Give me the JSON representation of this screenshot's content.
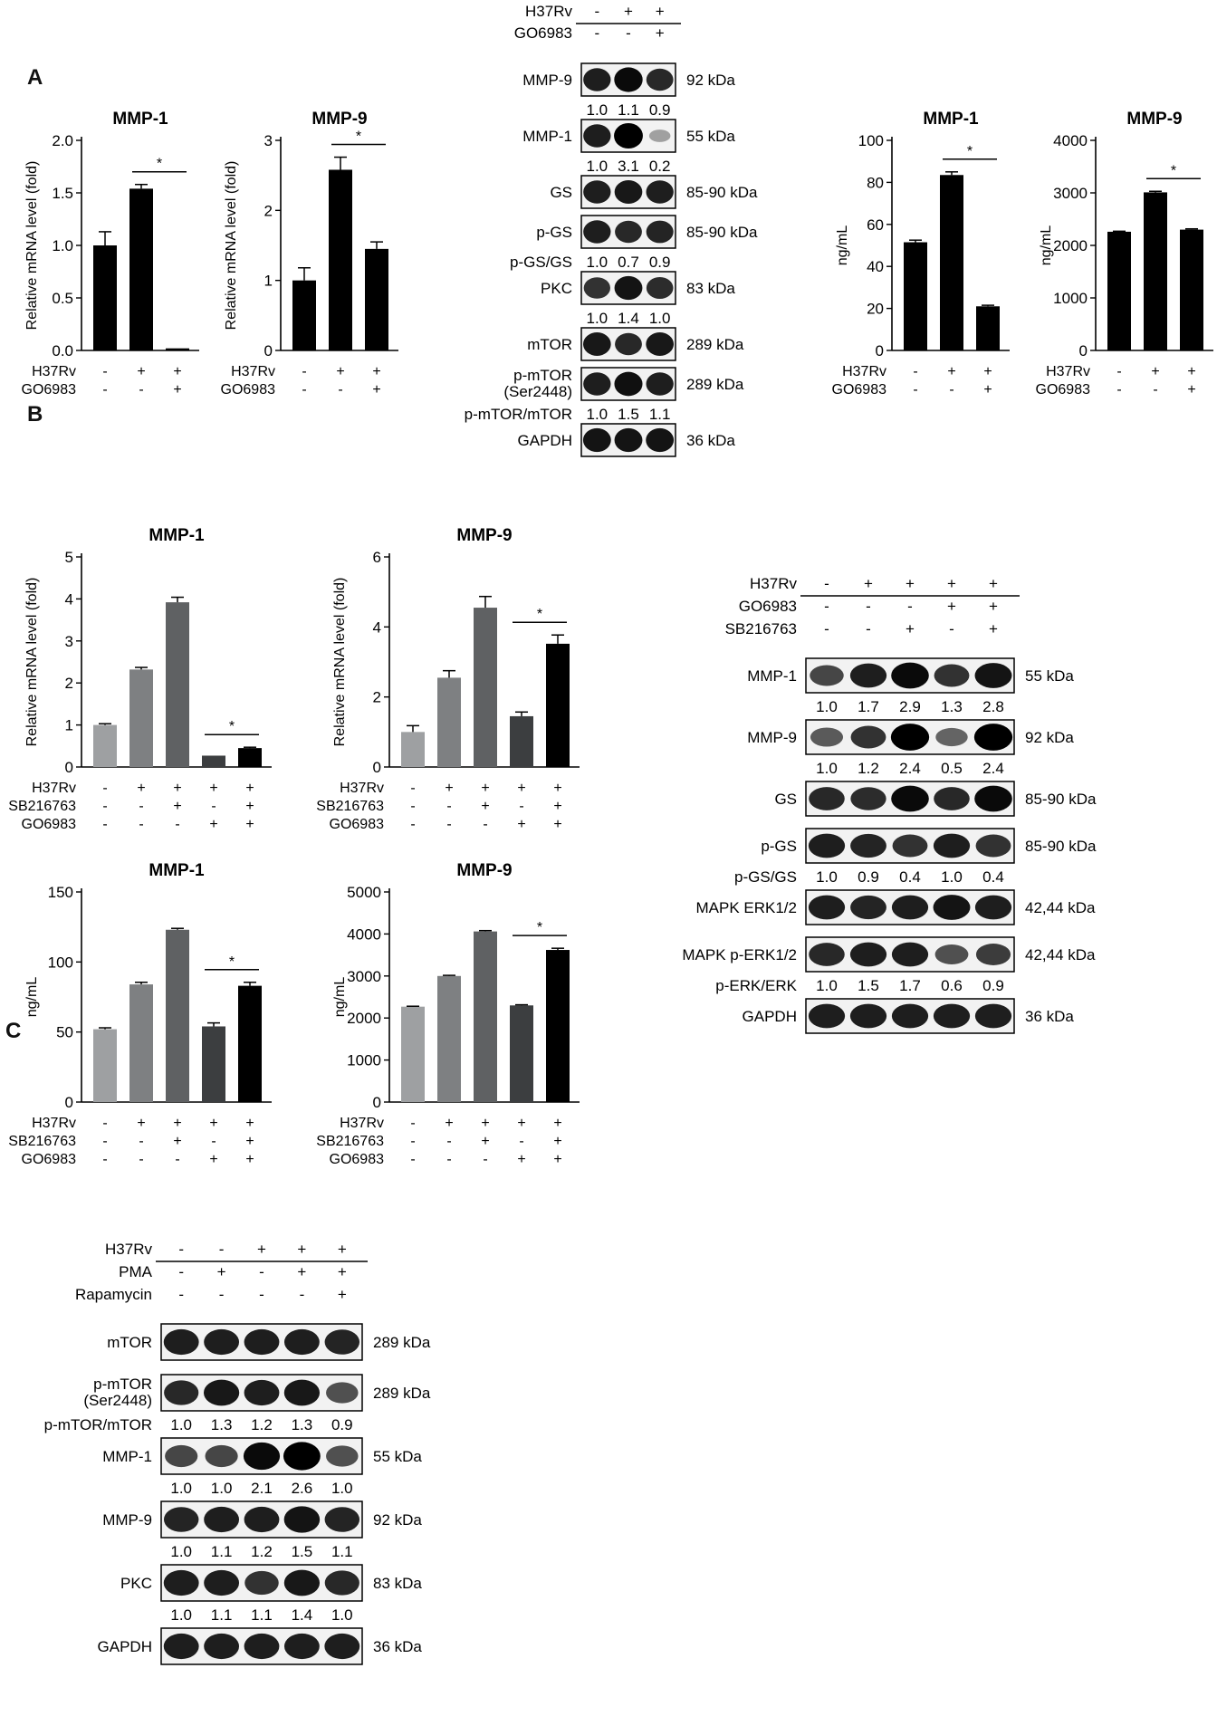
{
  "panels": {
    "a": "A",
    "b": "B",
    "c": "C"
  },
  "chart_data": [
    {
      "id": "a-mmp1-mrna",
      "type": "bar",
      "title": "MMP-1",
      "ylabel": "Relative mRNA level (fold)",
      "ylim": [
        0,
        2.0
      ],
      "yticks": [
        0.0,
        0.5,
        1.0,
        1.5,
        2.0
      ],
      "tick_decimals": 1,
      "values": [
        1.0,
        1.54,
        0.02
      ],
      "errors": [
        0.13,
        0.04,
        0.0
      ],
      "colors": [
        "#000000",
        "#000000",
        "#000000"
      ],
      "conditions": [
        {
          "name": "H37Rv",
          "signs": [
            "-",
            "+",
            "+"
          ]
        },
        {
          "name": "GO6983",
          "signs": [
            "-",
            "-",
            "+"
          ]
        }
      ],
      "sig": [
        {
          "from": 1,
          "to": 2,
          "label": "*"
        }
      ]
    },
    {
      "id": "a-mmp9-mrna",
      "type": "bar",
      "title": "MMP-9",
      "ylabel": "Relative mRNA level (fold)",
      "ylim": [
        0,
        3
      ],
      "yticks": [
        0,
        1,
        2,
        3
      ],
      "tick_decimals": 0,
      "values": [
        1.0,
        2.58,
        1.45
      ],
      "errors": [
        0.18,
        0.18,
        0.1
      ],
      "colors": [
        "#000000",
        "#000000",
        "#000000"
      ],
      "conditions": [
        {
          "name": "H37Rv",
          "signs": [
            "-",
            "+",
            "+"
          ]
        },
        {
          "name": "GO6983",
          "signs": [
            "-",
            "-",
            "+"
          ]
        }
      ],
      "sig": [
        {
          "from": 1,
          "to": 2,
          "label": "*"
        }
      ]
    },
    {
      "id": "a-mmp1-elisa",
      "type": "bar",
      "title": "MMP-1",
      "ylabel": "ng/mL",
      "ylim": [
        0,
        100
      ],
      "yticks": [
        0,
        20,
        40,
        60,
        80,
        100
      ],
      "tick_decimals": 0,
      "values": [
        51.5,
        83.5,
        21.0
      ],
      "errors": [
        1.0,
        1.5,
        0.5
      ],
      "colors": [
        "#000000",
        "#000000",
        "#000000"
      ],
      "conditions": [
        {
          "name": "H37Rv",
          "signs": [
            "-",
            "+",
            "+"
          ]
        },
        {
          "name": "GO6983",
          "signs": [
            "-",
            "-",
            "+"
          ]
        }
      ],
      "sig": [
        {
          "from": 1,
          "to": 2,
          "label": "*"
        }
      ]
    },
    {
      "id": "a-mmp9-elisa",
      "type": "bar",
      "title": "MMP-9",
      "ylabel": "ng/mL",
      "ylim": [
        0,
        4000
      ],
      "yticks": [
        0,
        1000,
        2000,
        3000,
        4000
      ],
      "tick_decimals": 0,
      "values": [
        2260,
        3010,
        2300
      ],
      "errors": [
        10,
        20,
        15
      ],
      "colors": [
        "#000000",
        "#000000",
        "#000000"
      ],
      "conditions": [
        {
          "name": "H37Rv",
          "signs": [
            "-",
            "+",
            "+"
          ]
        },
        {
          "name": "GO6983",
          "signs": [
            "-",
            "-",
            "+"
          ]
        }
      ],
      "sig": [
        {
          "from": 1,
          "to": 2,
          "label": "*"
        }
      ]
    },
    {
      "id": "b-mmp1-mrna",
      "type": "bar",
      "title": "MMP-1",
      "ylabel": "Relative mRNA level (fold)",
      "ylim": [
        0,
        5
      ],
      "yticks": [
        0,
        1,
        2,
        3,
        4,
        5
      ],
      "tick_decimals": 0,
      "values": [
        1.0,
        2.32,
        3.92,
        0.27,
        0.45
      ],
      "errors": [
        0.03,
        0.05,
        0.12,
        0.0,
        0.02
      ],
      "colors": [
        "#9ea0a2",
        "#7e8082",
        "#5f6163",
        "#3c3e40",
        "#000000"
      ],
      "conditions": [
        {
          "name": "H37Rv",
          "signs": [
            "-",
            "+",
            "+",
            "+",
            "+"
          ]
        },
        {
          "name": "SB216763",
          "signs": [
            "-",
            "-",
            "+",
            "-",
            "+"
          ]
        },
        {
          "name": "GO6983",
          "signs": [
            "-",
            "-",
            "-",
            "+",
            "+"
          ]
        }
      ],
      "sig": [
        {
          "from": 3,
          "to": 4,
          "label": "*"
        }
      ]
    },
    {
      "id": "b-mmp9-mrna",
      "type": "bar",
      "title": "MMP-9",
      "ylabel": "Relative mRNA level (fold)",
      "ylim": [
        0,
        6
      ],
      "yticks": [
        0,
        2,
        4,
        6
      ],
      "tick_decimals": 0,
      "values": [
        1.0,
        2.55,
        4.55,
        1.45,
        3.52
      ],
      "errors": [
        0.18,
        0.2,
        0.32,
        0.12,
        0.25
      ],
      "colors": [
        "#9ea0a2",
        "#7e8082",
        "#5f6163",
        "#3c3e40",
        "#000000"
      ],
      "conditions": [
        {
          "name": "H37Rv",
          "signs": [
            "-",
            "+",
            "+",
            "+",
            "+"
          ]
        },
        {
          "name": "SB216763",
          "signs": [
            "-",
            "-",
            "+",
            "-",
            "+"
          ]
        },
        {
          "name": "GO6983",
          "signs": [
            "-",
            "-",
            "-",
            "+",
            "+"
          ]
        }
      ],
      "sig": [
        {
          "from": 3,
          "to": 4,
          "label": "*"
        }
      ]
    },
    {
      "id": "b-mmp1-elisa",
      "type": "bar",
      "title": "MMP-1",
      "ylabel": "ng/mL",
      "ylim": [
        0,
        150
      ],
      "yticks": [
        0,
        50,
        100,
        150
      ],
      "tick_decimals": 0,
      "values": [
        52,
        84,
        123,
        54,
        83
      ],
      "errors": [
        1.0,
        1.5,
        1.0,
        2.5,
        2.5
      ],
      "colors": [
        "#9ea0a2",
        "#7e8082",
        "#5f6163",
        "#3c3e40",
        "#000000"
      ],
      "conditions": [
        {
          "name": "H37Rv",
          "signs": [
            "-",
            "+",
            "+",
            "+",
            "+"
          ]
        },
        {
          "name": "SB216763",
          "signs": [
            "-",
            "-",
            "+",
            "-",
            "+"
          ]
        },
        {
          "name": "GO6983",
          "signs": [
            "-",
            "-",
            "-",
            "+",
            "+"
          ]
        }
      ],
      "sig": [
        {
          "from": 3,
          "to": 4,
          "label": "*"
        }
      ]
    },
    {
      "id": "b-mmp9-elisa",
      "type": "bar",
      "title": "MMP-9",
      "ylabel": "ng/mL",
      "ylim": [
        0,
        5000
      ],
      "yticks": [
        0,
        1000,
        2000,
        3000,
        4000,
        5000
      ],
      "tick_decimals": 0,
      "values": [
        2270,
        3000,
        4060,
        2300,
        3620
      ],
      "errors": [
        10,
        15,
        20,
        15,
        40
      ],
      "colors": [
        "#9ea0a2",
        "#7e8082",
        "#5f6163",
        "#3c3e40",
        "#000000"
      ],
      "conditions": [
        {
          "name": "H37Rv",
          "signs": [
            "-",
            "+",
            "+",
            "+",
            "+"
          ]
        },
        {
          "name": "SB216763",
          "signs": [
            "-",
            "-",
            "+",
            "-",
            "+"
          ]
        },
        {
          "name": "GO6983",
          "signs": [
            "-",
            "-",
            "-",
            "+",
            "+"
          ]
        }
      ],
      "sig": [
        {
          "from": 3,
          "to": 4,
          "label": "*"
        }
      ]
    }
  ],
  "blots": {
    "a": {
      "lanes": 3,
      "conditions": [
        {
          "name": "H37Rv",
          "signs": [
            "-",
            "+",
            "+"
          ]
        },
        {
          "name": "GO6983",
          "signs": [
            "-",
            "-",
            "+"
          ]
        }
      ],
      "bands": [
        {
          "label": "MMP-9",
          "size": "92 kDa",
          "intensity": [
            0.85,
            0.95,
            0.8
          ],
          "ratio_label": "",
          "ratios": [
            "1.0",
            "1.1",
            "0.9"
          ]
        },
        {
          "label": "MMP-1",
          "size": "55 kDa",
          "intensity": [
            0.85,
            1.0,
            0.2
          ],
          "ratio_label": "",
          "ratios": [
            "1.0",
            "3.1",
            "0.2"
          ]
        },
        {
          "label": "GS",
          "size": "85-90 kDa",
          "intensity": [
            0.85,
            0.88,
            0.85
          ],
          "ratio_label": "",
          "ratios": []
        },
        {
          "label": "p-GS",
          "size": "85-90 kDa",
          "intensity": [
            0.85,
            0.8,
            0.82
          ],
          "ratio_label": "p-GS/GS",
          "ratios": [
            "1.0",
            "0.7",
            "0.9"
          ]
        },
        {
          "label": "PKC",
          "size": "83 kDa",
          "intensity": [
            0.75,
            0.9,
            0.78
          ],
          "ratio_label": "",
          "ratios": [
            "1.0",
            "1.4",
            "1.0"
          ]
        },
        {
          "label": "mTOR",
          "size": "289 kDa",
          "intensity": [
            0.88,
            0.8,
            0.88
          ],
          "ratio_label": "",
          "ratios": []
        },
        {
          "label": "p-mTOR (Ser2448)",
          "size": "289 kDa",
          "intensity": [
            0.85,
            0.92,
            0.85
          ],
          "ratio_label": "p-mTOR/mTOR",
          "ratios": [
            "1.0",
            "1.5",
            "1.1"
          ]
        },
        {
          "label": "GAPDH",
          "size": "36 kDa",
          "intensity": [
            0.9,
            0.9,
            0.9
          ],
          "ratio_label": "",
          "ratios": []
        }
      ]
    },
    "b": {
      "lanes": 5,
      "conditions": [
        {
          "name": "H37Rv",
          "signs": [
            "-",
            "+",
            "+",
            "+",
            "+"
          ]
        },
        {
          "name": "GO6983",
          "signs": [
            "-",
            "-",
            "-",
            "+",
            "+"
          ]
        },
        {
          "name": "SB216763",
          "signs": [
            "-",
            "-",
            "+",
            "-",
            "+"
          ]
        }
      ],
      "bands": [
        {
          "label": "MMP-1",
          "size": "55 kDa",
          "intensity": [
            0.65,
            0.85,
            0.95,
            0.75,
            0.9
          ],
          "ratio_label": "",
          "ratios": [
            "1.0",
            "1.7",
            "2.9",
            "1.3",
            "2.8"
          ]
        },
        {
          "label": "MMP-9",
          "size": "92 kDa",
          "intensity": [
            0.55,
            0.75,
            1.0,
            0.5,
            1.0
          ],
          "ratio_label": "",
          "ratios": [
            "1.0",
            "1.2",
            "2.4",
            "0.5",
            "2.4"
          ]
        },
        {
          "label": "GS",
          "size": "85-90 kDa",
          "intensity": [
            0.8,
            0.78,
            0.95,
            0.8,
            0.95
          ],
          "ratio_label": "",
          "ratios": []
        },
        {
          "label": "p-GS",
          "size": "85-90 kDa",
          "intensity": [
            0.85,
            0.82,
            0.75,
            0.85,
            0.75
          ],
          "ratio_label": "p-GS/GS",
          "ratios": [
            "1.0",
            "0.9",
            "0.4",
            "1.0",
            "0.4"
          ]
        },
        {
          "label": "MAPK ERK1/2",
          "size": "42,44 kDa",
          "intensity": [
            0.85,
            0.82,
            0.85,
            0.9,
            0.85
          ],
          "ratio_label": "",
          "ratios": []
        },
        {
          "label": "MAPK p-ERK1/2",
          "size": "42,44 kDa",
          "intensity": [
            0.8,
            0.85,
            0.85,
            0.6,
            0.7
          ],
          "ratio_label": "p-ERK/ERK",
          "ratios": [
            "1.0",
            "1.5",
            "1.7",
            "0.6",
            "0.9"
          ]
        },
        {
          "label": "GAPDH",
          "size": "36 kDa",
          "intensity": [
            0.85,
            0.85,
            0.85,
            0.85,
            0.85
          ],
          "ratio_label": "",
          "ratios": []
        }
      ]
    },
    "c": {
      "lanes": 5,
      "conditions": [
        {
          "name": "H37Rv",
          "signs": [
            "-",
            "-",
            "+",
            "+",
            "+"
          ]
        },
        {
          "name": "PMA",
          "signs": [
            "-",
            "+",
            "-",
            "+",
            "+"
          ]
        },
        {
          "name": "Rapamycin",
          "signs": [
            "-",
            "-",
            "-",
            "-",
            "+"
          ]
        }
      ],
      "bands": [
        {
          "label": "mTOR",
          "size": "289 kDa",
          "intensity": [
            0.85,
            0.85,
            0.85,
            0.85,
            0.82
          ],
          "ratio_label": "",
          "ratios": []
        },
        {
          "label": "p-mTOR (Ser2448)",
          "size": "289 kDa",
          "intensity": [
            0.8,
            0.88,
            0.85,
            0.88,
            0.6
          ],
          "ratio_label": "p-mTOR/mTOR",
          "ratios": [
            "1.0",
            "1.3",
            "1.2",
            "1.3",
            "0.9"
          ]
        },
        {
          "label": "MMP-1",
          "size": "55 kDa",
          "intensity": [
            0.65,
            0.65,
            0.95,
            1.0,
            0.6
          ],
          "ratio_label": "",
          "ratios": [
            "1.0",
            "1.0",
            "2.1",
            "2.6",
            "1.0"
          ]
        },
        {
          "label": "MMP-9",
          "size": "92 kDa",
          "intensity": [
            0.82,
            0.85,
            0.85,
            0.9,
            0.82
          ],
          "ratio_label": "",
          "ratios": [
            "1.0",
            "1.1",
            "1.2",
            "1.5",
            "1.1"
          ]
        },
        {
          "label": "PKC",
          "size": "83 kDa",
          "intensity": [
            0.85,
            0.85,
            0.75,
            0.88,
            0.8
          ],
          "ratio_label": "",
          "ratios": [
            "1.0",
            "1.1",
            "1.1",
            "1.4",
            "1.0"
          ]
        },
        {
          "label": "GAPDH",
          "size": "36 kDa",
          "intensity": [
            0.85,
            0.85,
            0.85,
            0.85,
            0.85
          ],
          "ratio_label": "",
          "ratios": []
        }
      ]
    }
  }
}
